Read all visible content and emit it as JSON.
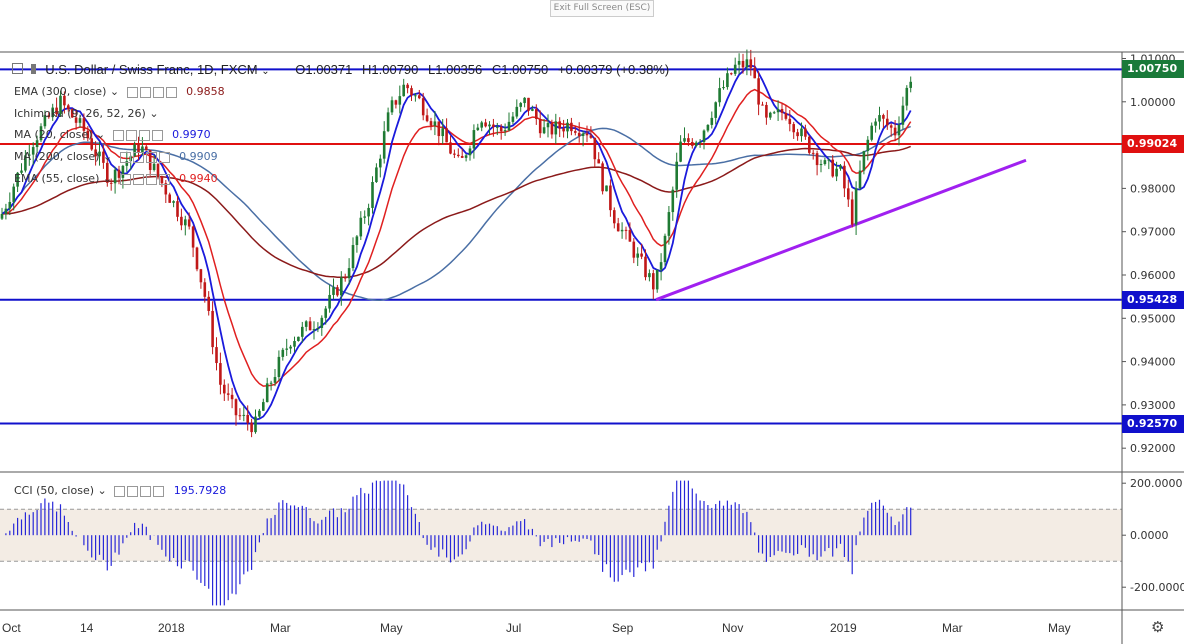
{
  "exit_fullscreen": "Exit Full Screen (ESC)",
  "header": {
    "symbol": "U.S. Dollar / Swiss Franc, 1D, FXCM",
    "o": "O1.00371",
    "h": "H1.00790",
    "l": "L1.00356",
    "c": "C1.00750",
    "chg": "+0.00379 (+0.38%)"
  },
  "indicators": [
    {
      "label": "EMA (300, close)",
      "value": "0.9858",
      "color": "#8b1a1a"
    },
    {
      "label": "Ichimoku (9, 26, 52, 26)",
      "value": "",
      "color": "#333333"
    },
    {
      "label": "MA (20, close)",
      "value": "0.9970",
      "color": "#1a1adc"
    },
    {
      "label": "MA (200, close)",
      "value": "0.9909",
      "color": "#4a6fa5"
    },
    {
      "label": "EMA (55, close)",
      "value": "0.9940",
      "color": "#e02020"
    }
  ],
  "price_tags": [
    {
      "text": "1.00750",
      "price": 1.0075,
      "color": "#1a7a3a"
    },
    {
      "text": "0.99024",
      "price": 0.99024,
      "color": "#e01010"
    },
    {
      "text": "0.95428",
      "price": 0.95428,
      "color": "#1010cc"
    },
    {
      "text": "0.92570",
      "price": 0.9257,
      "color": "#1010cc"
    }
  ],
  "cci": {
    "label": "CCI (50, close)",
    "value": "195.7928",
    "ticks": [
      "200.0000",
      "0.0000",
      "-200.0000"
    ]
  },
  "chart_data": {
    "type": "candlestick",
    "price_ticks": [
      "1.01000",
      "1.00000",
      "0.99000",
      "0.98000",
      "0.97000",
      "0.96000",
      "0.95000",
      "0.94000",
      "0.93000",
      "0.92000"
    ],
    "ylim": [
      0.9145,
      1.0115
    ],
    "x_labels": [
      "Oct",
      "14",
      "2018",
      "Mar",
      "May",
      "Jul",
      "Sep",
      "Nov",
      "2019",
      "Mar",
      "May"
    ],
    "horizontal_lines": [
      1.0075,
      0.99024,
      0.95428,
      0.9257
    ],
    "trendline": {
      "from": [
        "Sep",
        0.9543
      ],
      "to": [
        "Mar",
        0.9865
      ],
      "color": "#a020f0"
    },
    "cci_range": [
      -280,
      220
    ],
    "cci_band": [
      100,
      -100
    ]
  }
}
